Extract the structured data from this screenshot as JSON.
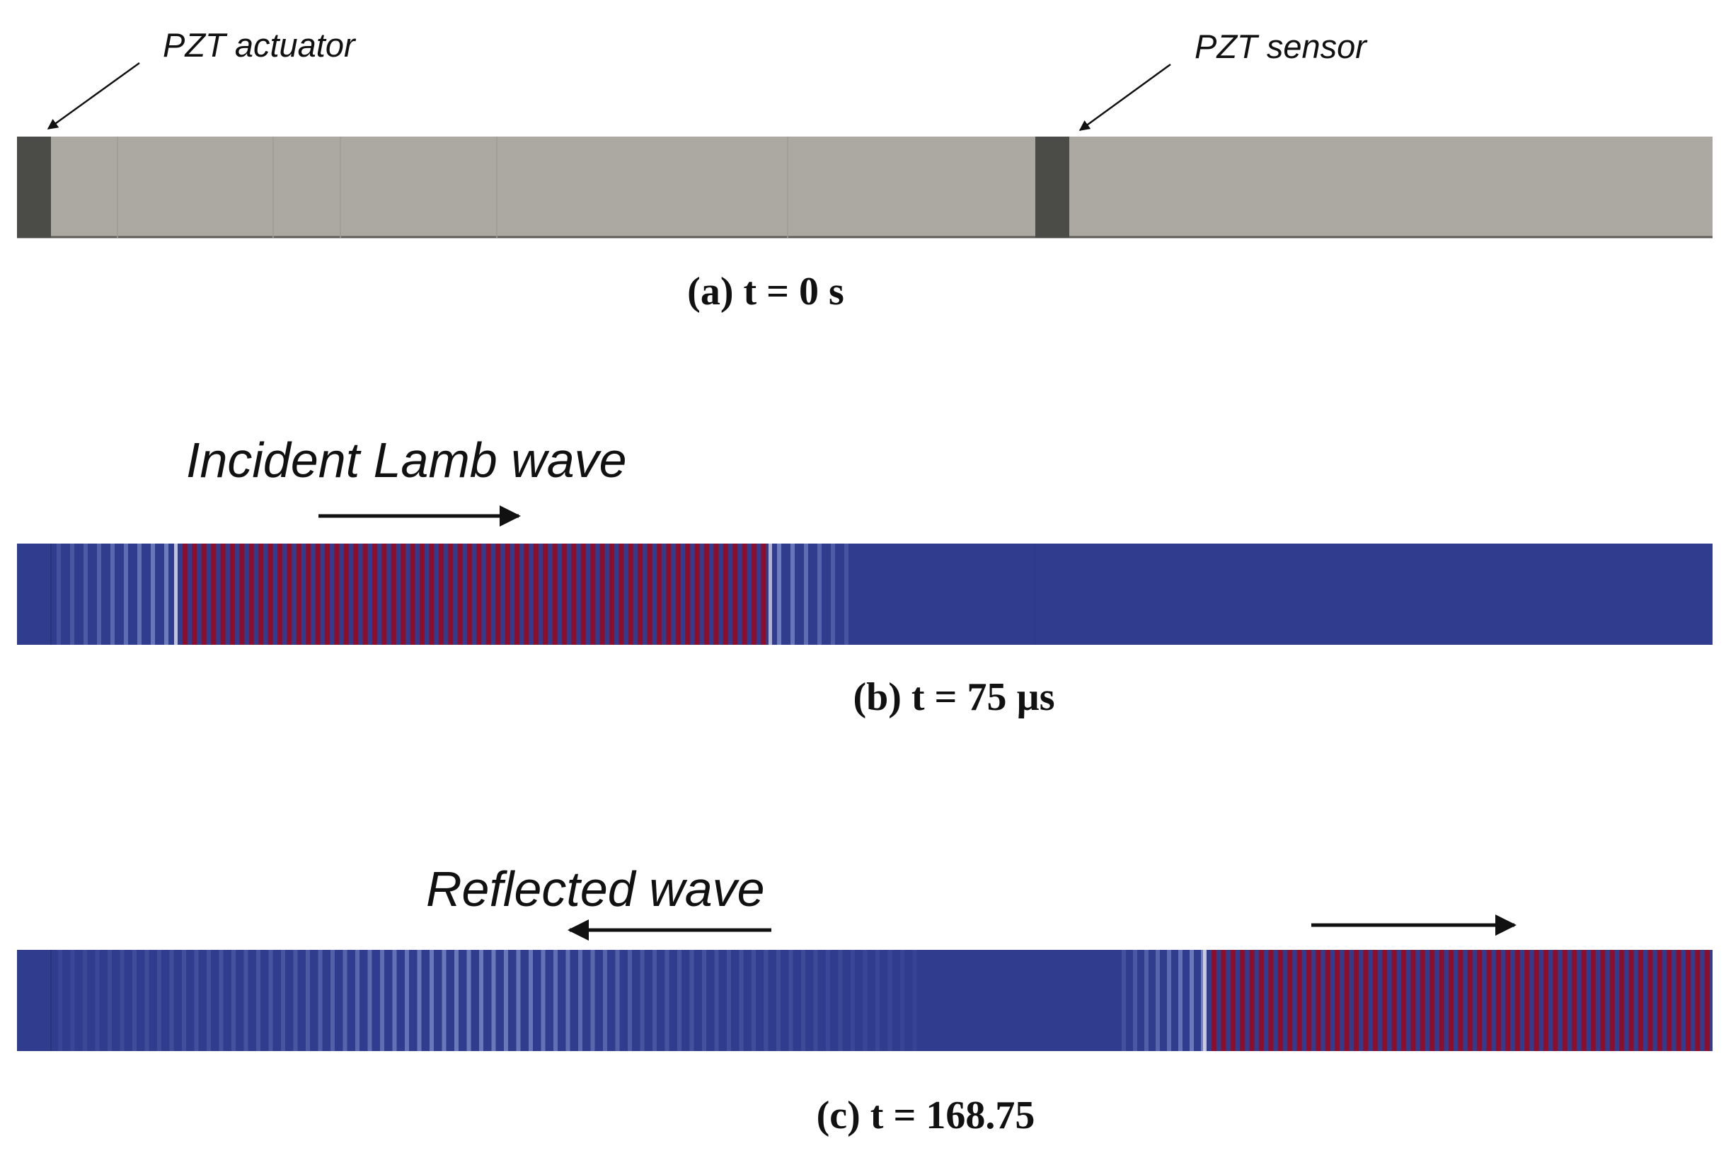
{
  "panels": [
    {
      "id": "a",
      "caption": "(a)  t = 0 s",
      "state": "undeformed",
      "labels": {
        "actuator": "PZT actuator",
        "sensor": "PZT sensor"
      }
    },
    {
      "id": "b",
      "caption": "(b)  t = 75 µs",
      "state": "incident",
      "annotation": "Incident Lamb wave",
      "arrow_direction": "right"
    },
    {
      "id": "c",
      "caption": "(c)  t = 168.75",
      "state": "reflected",
      "annotation": "Reflected wave",
      "arrow_direction_reflected": "left",
      "arrow_direction_transmitted": "right"
    }
  ],
  "colors": {
    "plate_gray": "#aca9a2",
    "pzt_dark": "#4b4b48",
    "field_blue": "#303d8f",
    "field_light": "#7e8ec8",
    "field_red": "#8d0e2a",
    "field_white": "#dadbe6",
    "ink": "#111111"
  }
}
